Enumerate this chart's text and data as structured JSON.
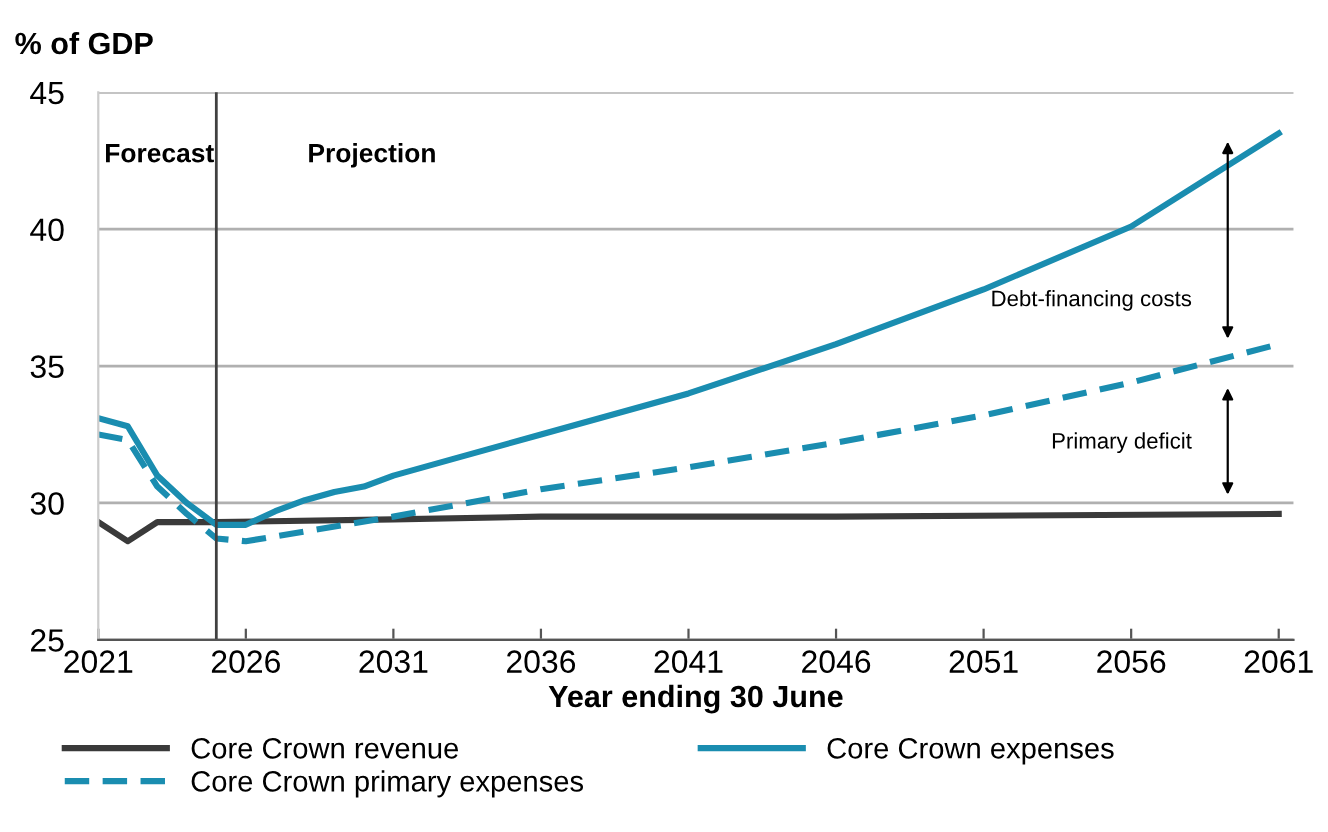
{
  "chart_data": {
    "type": "line",
    "ylabel": "% of GDP",
    "xlabel": "Year ending 30 June",
    "xlim": [
      2021,
      2061.5
    ],
    "xticks": [
      2021,
      2026,
      2031,
      2036,
      2041,
      2046,
      2051,
      2056,
      2061
    ],
    "ylim": [
      25,
      45
    ],
    "yticks": [
      25,
      30,
      35,
      40,
      45
    ],
    "grid": "y",
    "legend": "bottom",
    "line_style": "solid",
    "marker": "none",
    "ref_lines": [
      {
        "axis": "x",
        "value": 2025,
        "color": "#404040"
      }
    ],
    "annotations": [
      "Forecast",
      "Projection",
      "Debt-financing costs",
      "Primary deficit"
    ],
    "series": [
      {
        "name": "Core Crown revenue",
        "color": "#3a3a3a",
        "x": [
          2021,
          2022,
          2023,
          2024,
          2025,
          2031,
          2036,
          2046,
          2061
        ],
        "values": [
          29.3,
          28.6,
          29.3,
          29.3,
          29.3,
          29.4,
          29.5,
          29.5,
          29.6
        ]
      },
      {
        "name": "Core Crown expenses",
        "color": "#1a8db0",
        "x": [
          2021,
          2022,
          2023,
          2024,
          2025,
          2026,
          2027,
          2028,
          2029,
          2030,
          2031,
          2033,
          2036,
          2041,
          2046,
          2051,
          2056,
          2061
        ],
        "values": [
          33.1,
          32.8,
          31.0,
          30.0,
          29.2,
          29.2,
          29.7,
          30.1,
          30.4,
          30.6,
          31.0,
          31.6,
          32.5,
          34.0,
          35.8,
          37.8,
          40.1,
          43.5
        ]
      },
      {
        "name": "Core Crown primary expenses",
        "color": "#1a8db0",
        "line_style": "dashed",
        "x": [
          2021,
          2022,
          2023,
          2024,
          2025,
          2026,
          2031,
          2036,
          2041,
          2046,
          2051,
          2056,
          2061
        ],
        "values": [
          32.5,
          32.3,
          30.6,
          29.6,
          28.7,
          28.6,
          29.5,
          30.5,
          31.3,
          32.2,
          33.2,
          34.4,
          35.8
        ]
      }
    ]
  }
}
